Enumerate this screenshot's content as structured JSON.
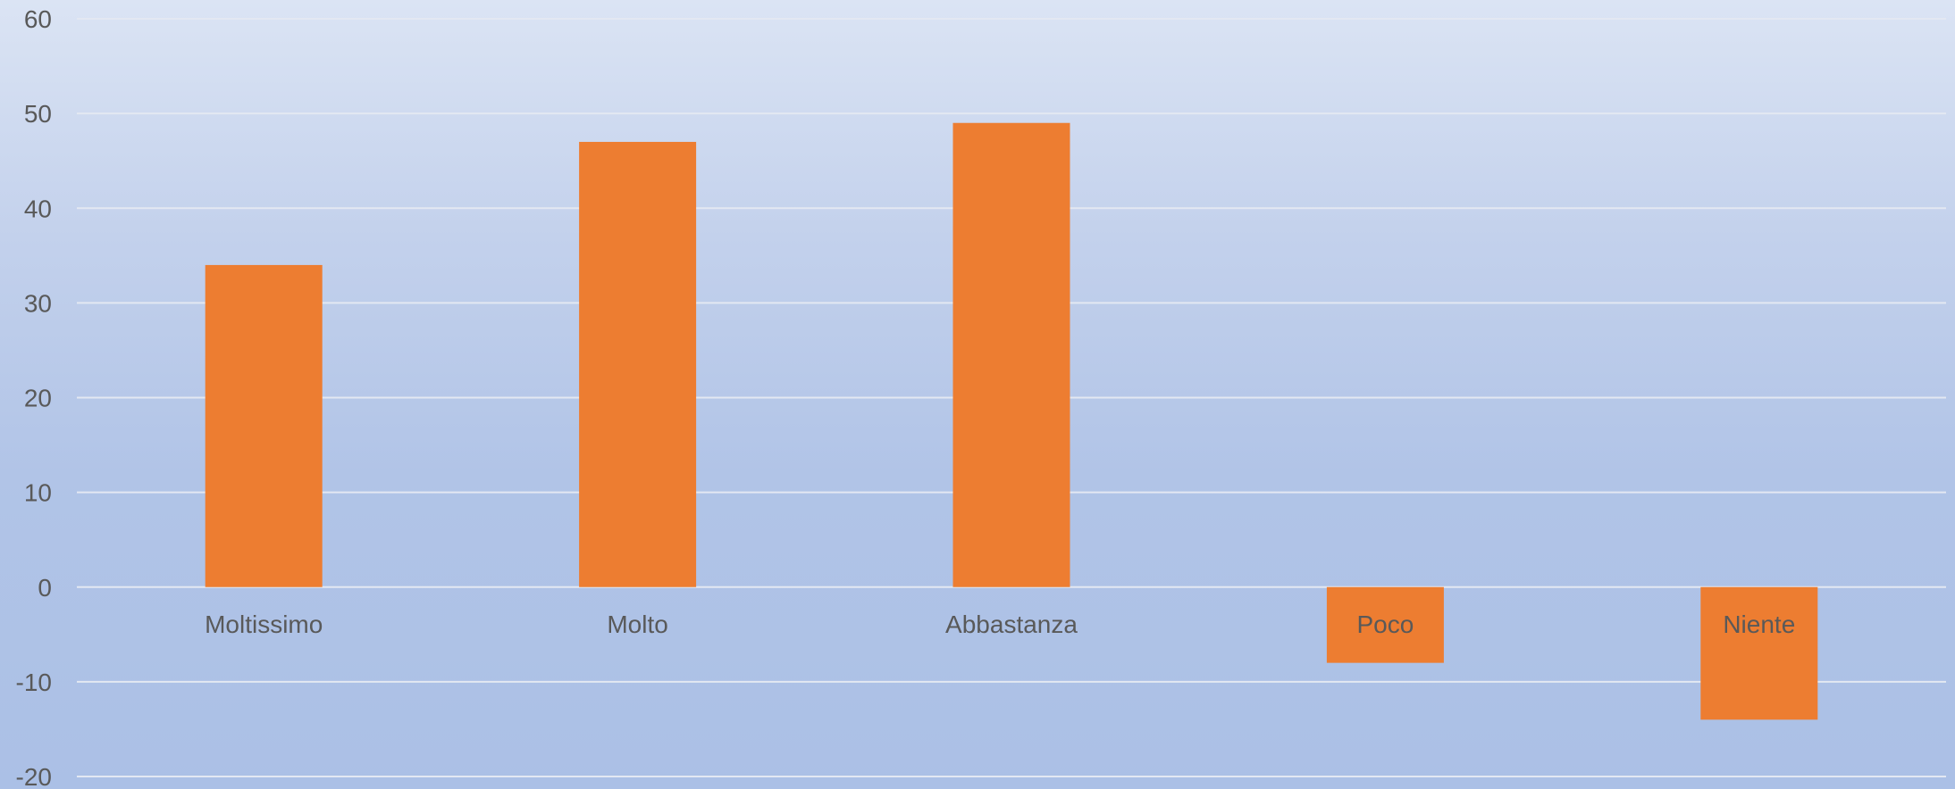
{
  "chart_data": {
    "type": "bar",
    "categories": [
      "Moltissimo",
      "Molto",
      "Abbastanza",
      "Poco",
      "Niente"
    ],
    "series": [
      {
        "values": [
          34,
          47,
          49,
          -8,
          -14
        ],
        "color": "#ed7d31"
      }
    ],
    "title": "",
    "xlabel": "",
    "ylabel": "",
    "ylim": [
      -20,
      60
    ],
    "yticks": [
      -20,
      -10,
      0,
      10,
      20,
      30,
      40,
      50,
      60
    ],
    "grid": true,
    "legend": "none",
    "background": "#b8c9ea"
  }
}
